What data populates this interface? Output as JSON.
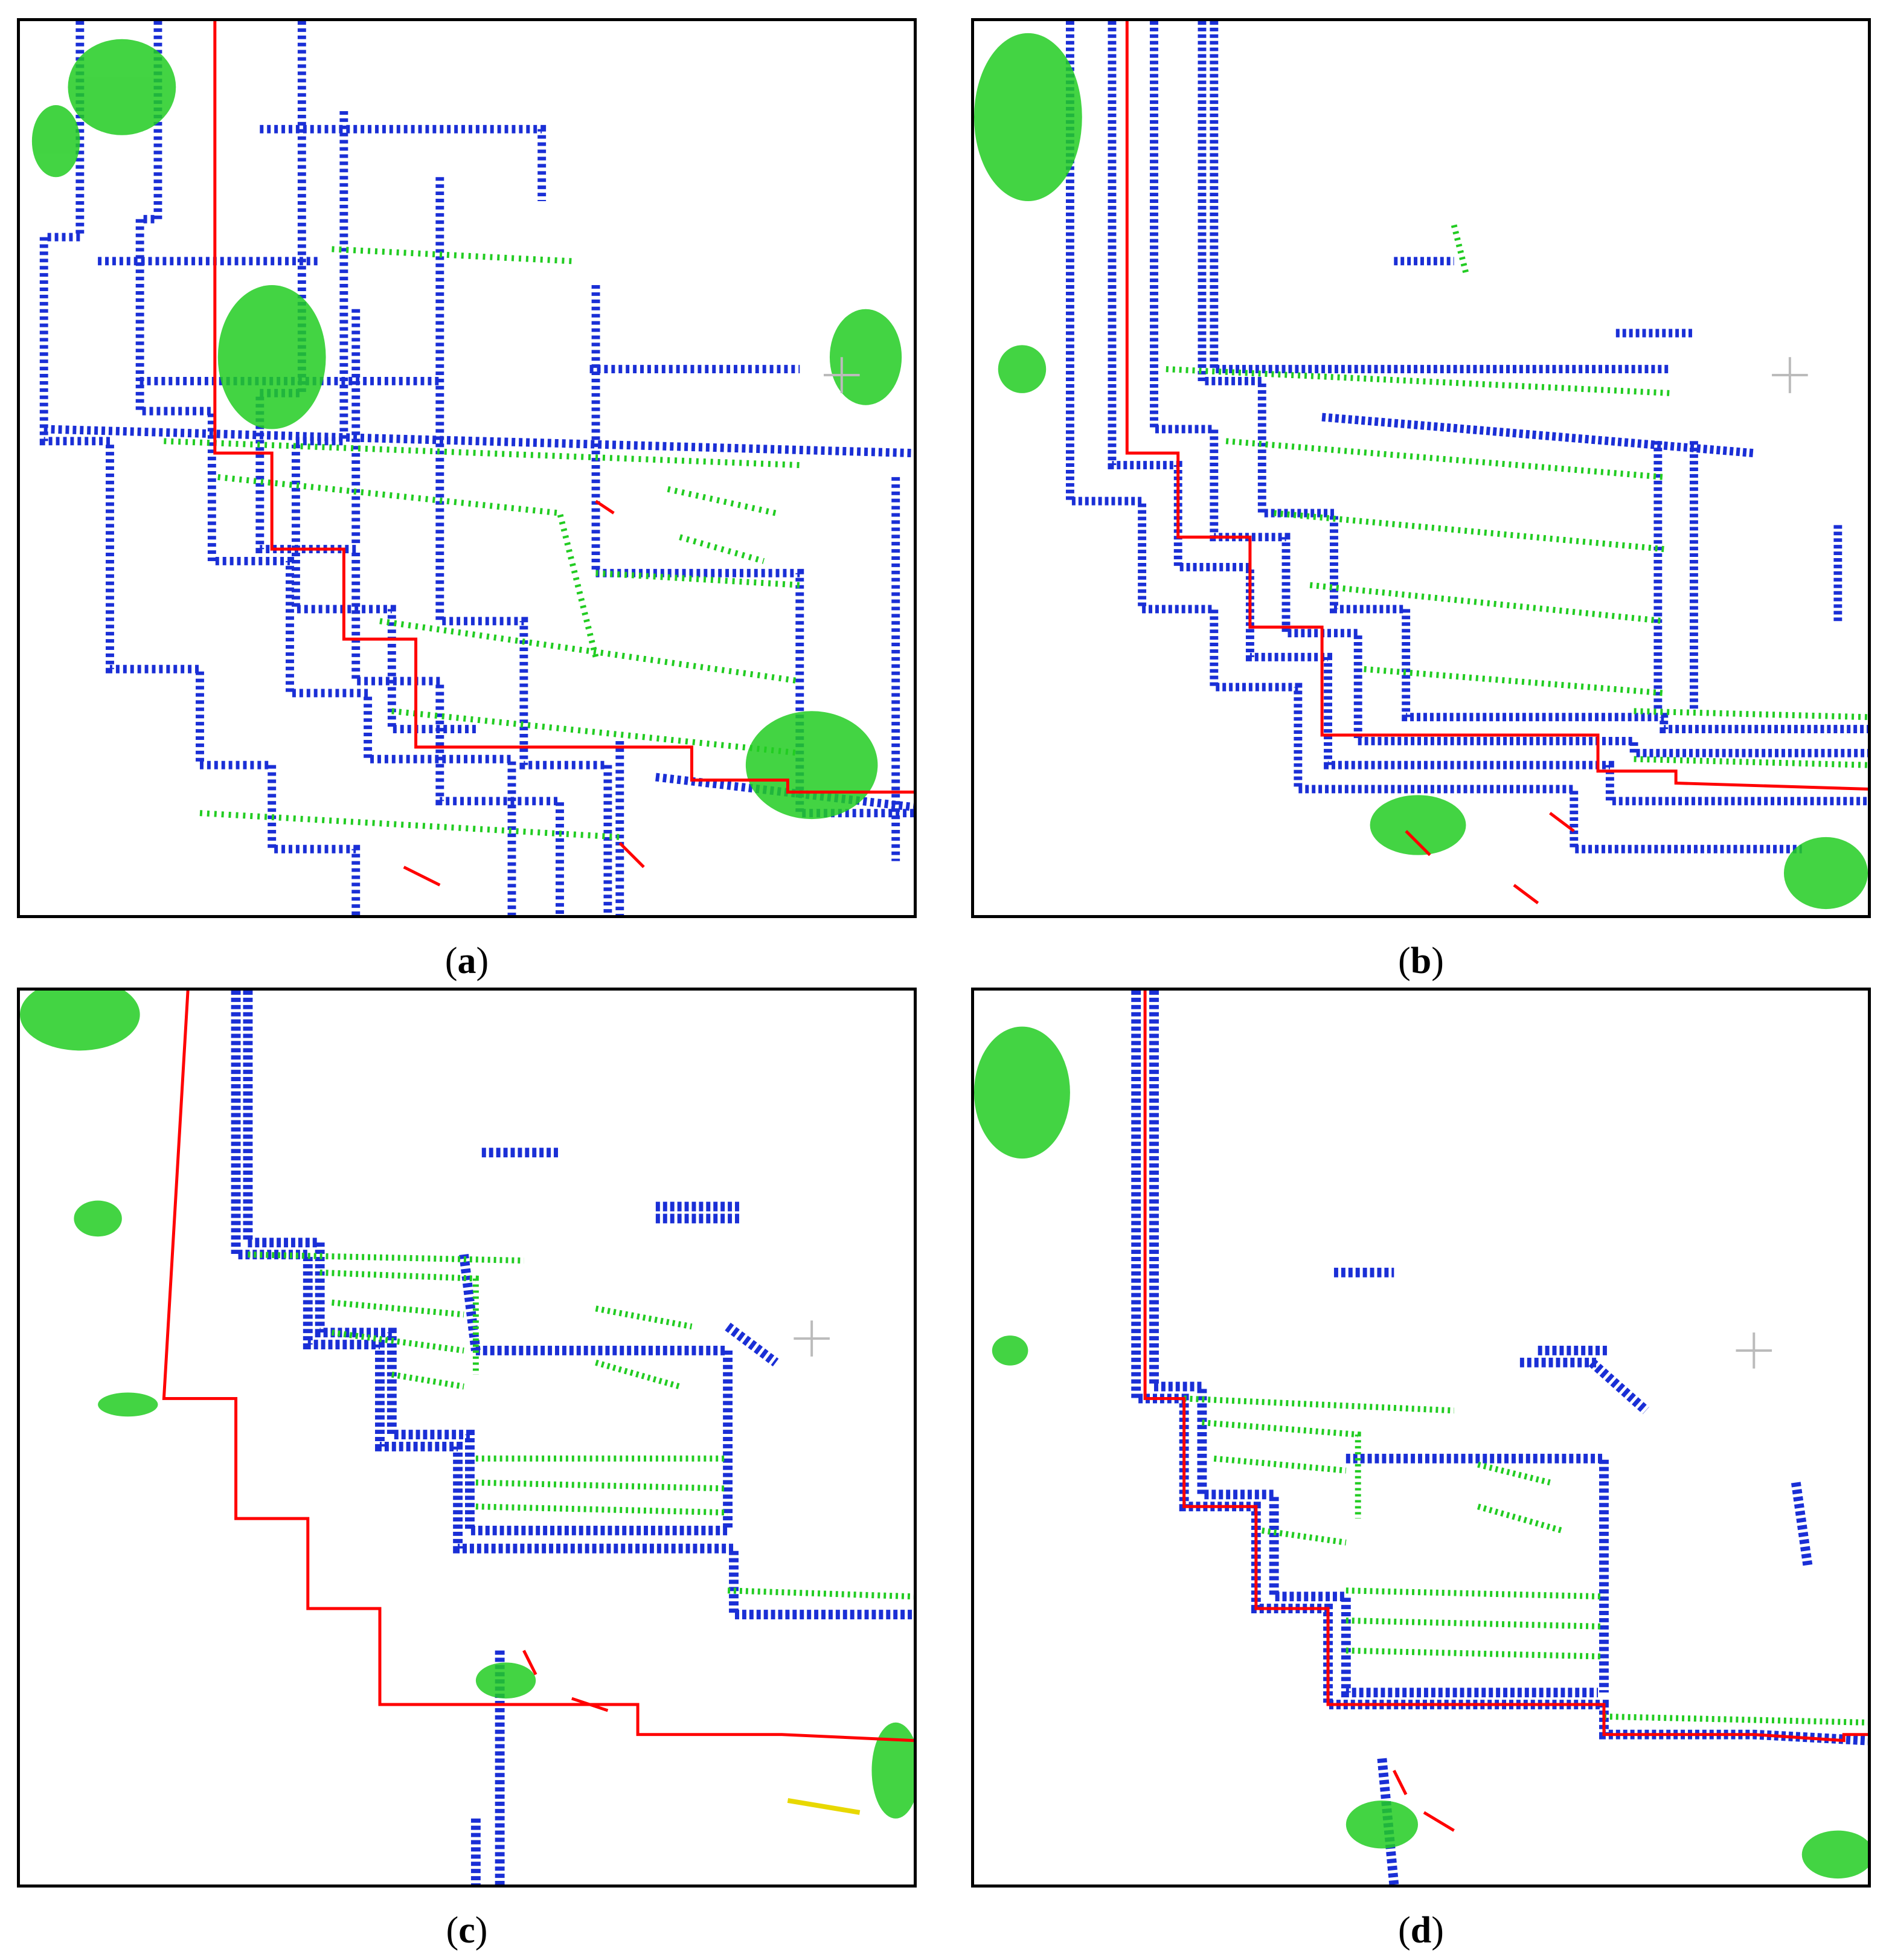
{
  "panels": [
    {
      "id": "a",
      "caption_open": "(",
      "caption_letter": "a",
      "caption_close": ")"
    },
    {
      "id": "b",
      "caption_open": "(",
      "caption_letter": "b",
      "caption_close": ")"
    },
    {
      "id": "c",
      "caption_open": "(",
      "caption_letter": "c",
      "caption_close": ")"
    },
    {
      "id": "d",
      "caption_open": "(",
      "caption_letter": "d",
      "caption_close": ")"
    }
  ],
  "colors": {
    "boundary_line": "#ff0000",
    "points_blue": "#1a2fd6",
    "points_green": "#22cc22",
    "points_teal": "#1e8a6a",
    "points_yellow": "#e8d800",
    "crosshair": "#bbbbbb",
    "frame": "#000000"
  }
}
